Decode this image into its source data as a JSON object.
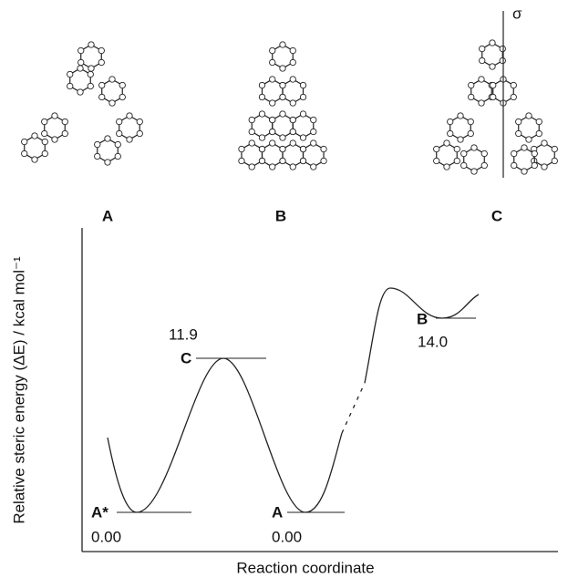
{
  "structures": [
    {
      "label": "A"
    },
    {
      "label": "B"
    },
    {
      "label": "C",
      "annotation": "σ"
    }
  ],
  "diagram": {
    "y_label": "Relative steric energy (ΔE) / kcal mol⁻¹",
    "x_label": "Reaction coordinate",
    "levels": [
      {
        "label": "A*",
        "energy": "0.00"
      },
      {
        "label": "C",
        "energy": "11.9"
      },
      {
        "label": "A",
        "energy": "0.00"
      },
      {
        "label": "B",
        "energy": "14.0"
      }
    ]
  }
}
